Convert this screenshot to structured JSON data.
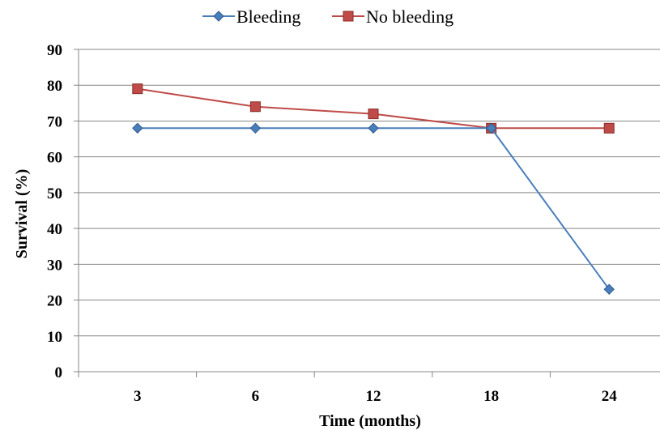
{
  "chart_data": {
    "type": "line",
    "title": "",
    "xlabel": "Time (months)",
    "ylabel": "Survival (%)",
    "categories": [
      "3",
      "6",
      "12",
      "18",
      "24"
    ],
    "ylim": [
      0,
      90
    ],
    "yticks": [
      0,
      10,
      20,
      30,
      40,
      50,
      60,
      70,
      80,
      90
    ],
    "grid": true,
    "legend": "top-center",
    "series": [
      {
        "name": "Bleeding",
        "values": [
          68,
          68,
          68,
          68,
          23
        ],
        "color": "#4a7ebb",
        "marker": "diamond"
      },
      {
        "name": "No bleeding",
        "values": [
          79,
          74,
          72,
          68,
          68
        ],
        "color": "#be4b48",
        "marker": "square"
      }
    ]
  }
}
